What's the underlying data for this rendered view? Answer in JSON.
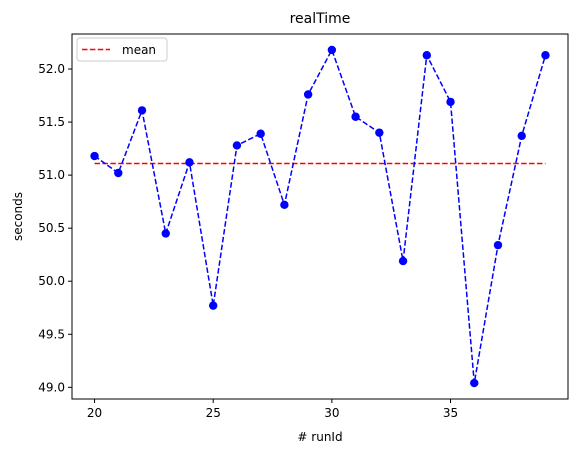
{
  "chart_data": {
    "type": "line",
    "title": "realTime",
    "xlabel": "# runId",
    "ylabel": "seconds",
    "xlim": [
      19.05,
      39.95
    ],
    "ylim": [
      48.89,
      52.33
    ],
    "xticks": [
      20,
      25,
      30,
      35
    ],
    "yticks": [
      49.0,
      49.5,
      50.0,
      50.5,
      51.0,
      51.5,
      52.0
    ],
    "xtick_labels": [
      "20",
      "25",
      "30",
      "35"
    ],
    "ytick_labels": [
      "49.0",
      "49.5",
      "50.0",
      "50.5",
      "51.0",
      "51.5",
      "52.0"
    ],
    "grid": false,
    "legend": {
      "placement": "top-left",
      "entries": [
        "mean"
      ]
    },
    "series": [
      {
        "style": "dashed line with circle markers",
        "color": "#0000ff",
        "x": [
          20,
          21,
          22,
          23,
          24,
          25,
          26,
          27,
          28,
          29,
          30,
          31,
          32,
          33,
          34,
          35,
          36,
          37,
          38,
          39
        ],
        "values": [
          51.18,
          51.02,
          51.61,
          50.45,
          51.12,
          49.77,
          51.28,
          51.39,
          50.72,
          51.76,
          52.18,
          51.55,
          51.4,
          50.19,
          52.13,
          51.69,
          49.04,
          50.34,
          51.37,
          52.13
        ]
      },
      {
        "name": "mean",
        "style": "dashed line",
        "color": "#ff0000",
        "x": [
          20,
          39
        ],
        "values": [
          51.11,
          51.11
        ]
      }
    ]
  }
}
